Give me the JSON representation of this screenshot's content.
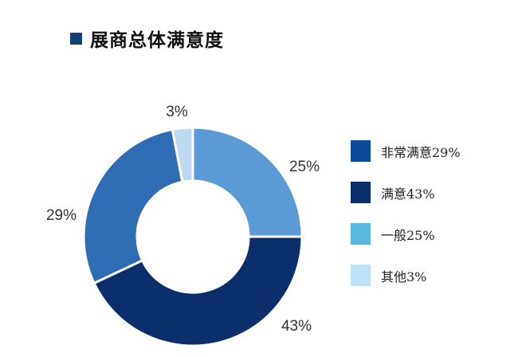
{
  "title": "展商总体满意度",
  "chart_data": {
    "type": "pie",
    "donut": true,
    "title": "展商总体满意度",
    "slices": [
      {
        "category": "一般",
        "value": 25,
        "label": "25%",
        "color": "#5b9bd5"
      },
      {
        "category": "满意",
        "value": 43,
        "label": "43%",
        "color": "#0a2f6c"
      },
      {
        "category": "非常满意",
        "value": 29,
        "label": "29%",
        "color": "#2e6db4"
      },
      {
        "category": "其他",
        "value": 3,
        "label": "3%",
        "color": "#bcd9f0"
      }
    ],
    "legend": {
      "placement": "right",
      "entries": [
        {
          "label": "非常满意29%",
          "color": "#0b4c9c"
        },
        {
          "label": "满意43%",
          "color": "#0a2f6c"
        },
        {
          "label": "一般25%",
          "color": "#5ab8e0"
        },
        {
          "label": "其他3%",
          "color": "#bfe1f5"
        }
      ]
    }
  }
}
